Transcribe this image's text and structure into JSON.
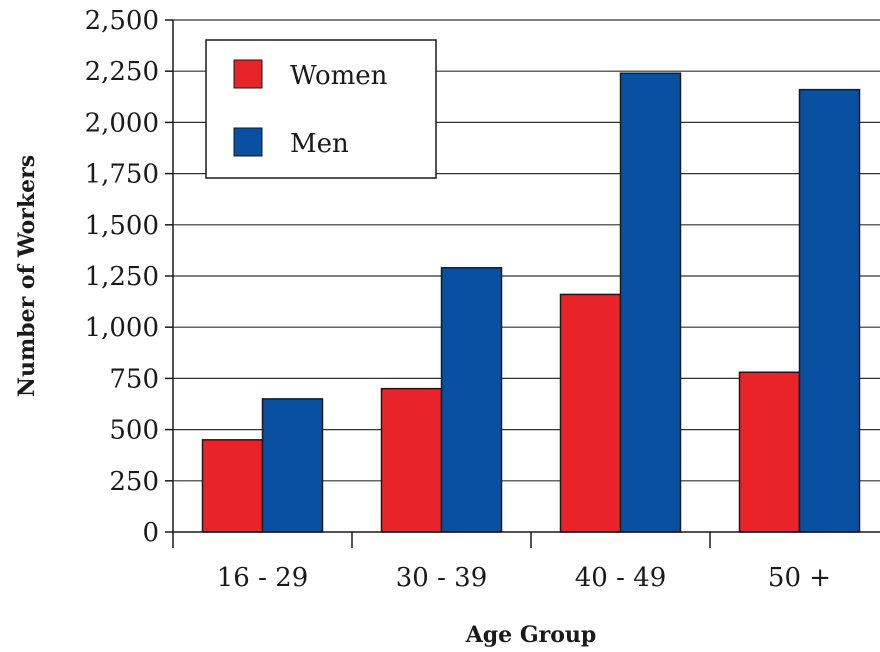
{
  "chart_data": {
    "type": "bar",
    "title": "",
    "xlabel": "Age Group",
    "ylabel": "Number of Workers",
    "categories": [
      "16 - 29",
      "30 - 39",
      "40 - 49",
      "50 +"
    ],
    "series": [
      {
        "name": "Women",
        "color": "#e8242a",
        "values": [
          450,
          700,
          1160,
          780
        ]
      },
      {
        "name": "Men",
        "color": "#0a50a0",
        "values": [
          650,
          1290,
          2240,
          2160
        ]
      }
    ],
    "ylim": [
      0,
      2500
    ],
    "yticks": [
      0,
      250,
      500,
      750,
      1000,
      1250,
      1500,
      1750,
      2000,
      2250,
      2500
    ],
    "ytick_labels": [
      "0",
      "250",
      "500",
      "750",
      "1,000",
      "1,250",
      "1,500",
      "1,750",
      "2,000",
      "2,250",
      "2,500"
    ],
    "grid": true,
    "legend_position": "top-left"
  }
}
